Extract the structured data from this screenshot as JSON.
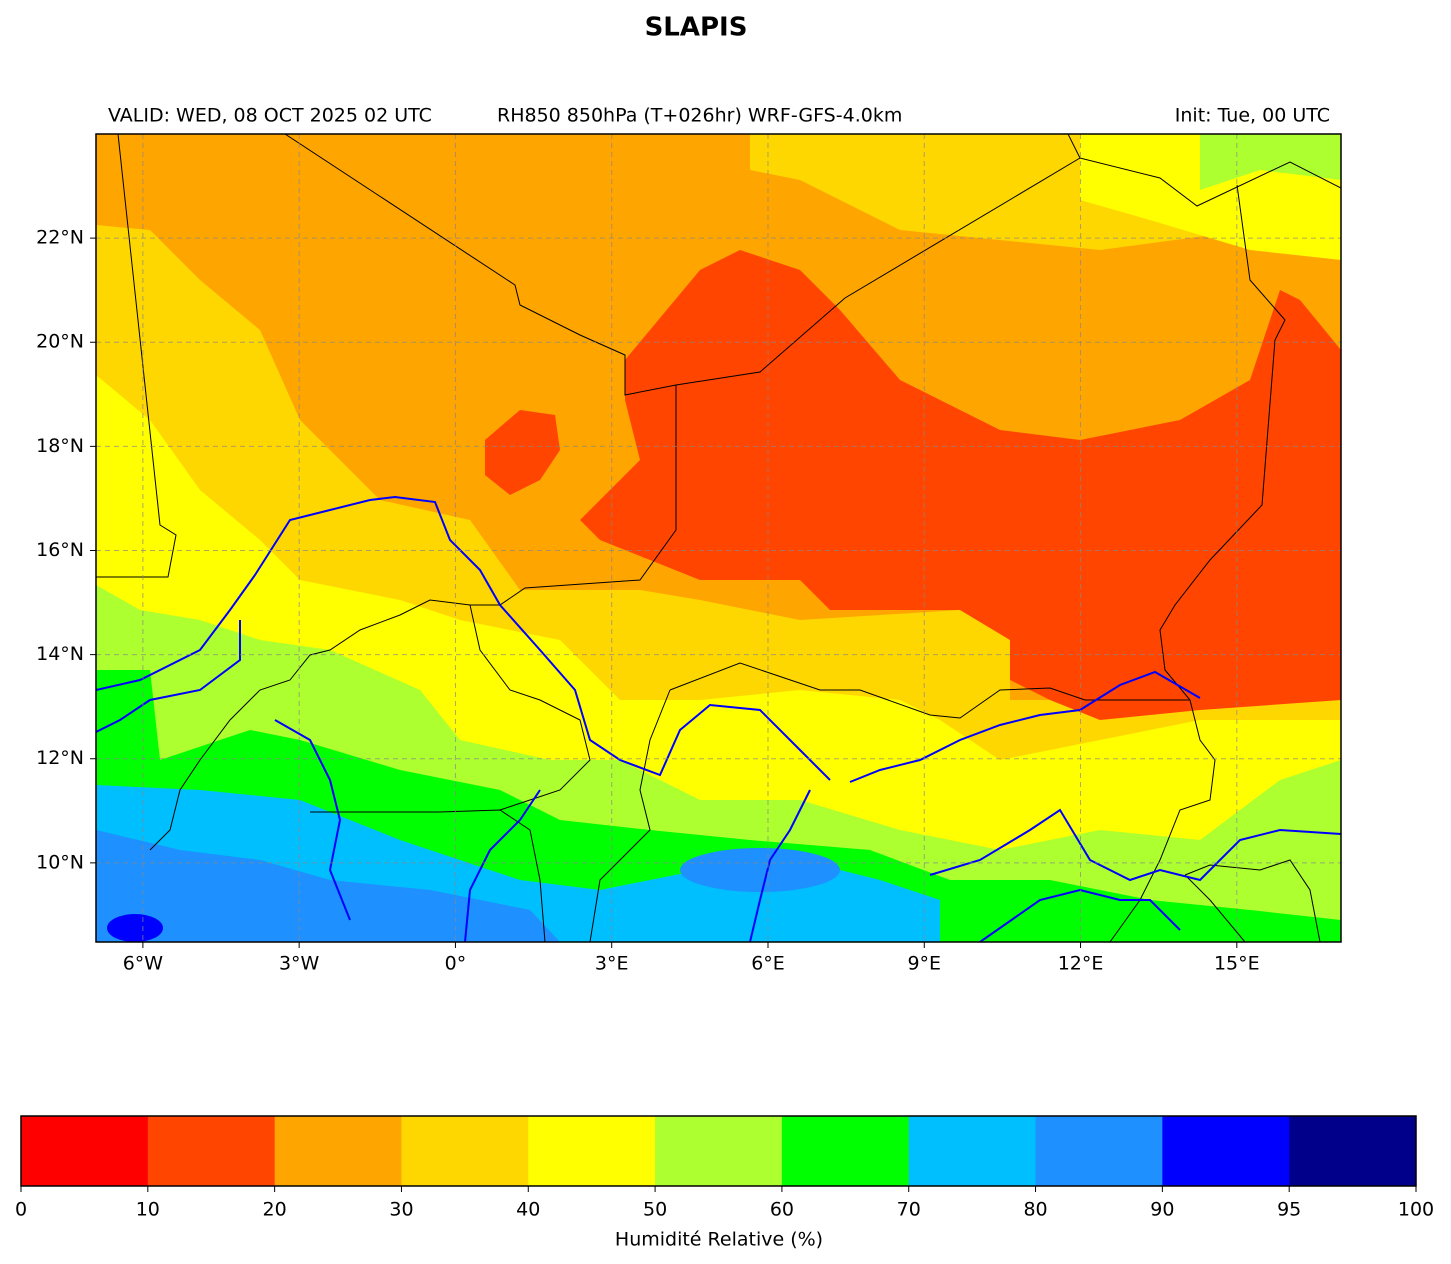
{
  "title": "SLAPIS",
  "header": {
    "valid": "VALID: WED, 08 OCT 2025 02 UTC",
    "product": "RH850 850hPa (T+026hr) WRF-GFS-4.0km",
    "init": "Init: Tue, 00 UTC"
  },
  "map": {
    "xlim": [
      -6.9,
      17.0
    ],
    "ylim": [
      8.48,
      24.0
    ],
    "xticks": [
      {
        "value": -6,
        "label": "6°W"
      },
      {
        "value": -3,
        "label": "3°W"
      },
      {
        "value": 0,
        "label": "0°"
      },
      {
        "value": 3,
        "label": "3°E"
      },
      {
        "value": 6,
        "label": "6°E"
      },
      {
        "value": 9,
        "label": "9°E"
      },
      {
        "value": 12,
        "label": "12°E"
      },
      {
        "value": 15,
        "label": "15°E"
      }
    ],
    "yticks": [
      {
        "value": 10,
        "label": "10°N"
      },
      {
        "value": 12,
        "label": "12°N"
      },
      {
        "value": 14,
        "label": "14°N"
      },
      {
        "value": 16,
        "label": "16°N"
      },
      {
        "value": 18,
        "label": "18°N"
      },
      {
        "value": 20,
        "label": "20°N"
      },
      {
        "value": 22,
        "label": "22°N"
      }
    ],
    "grid": true
  },
  "colorbar": {
    "label": "Humidité Relative (%)",
    "bounds": [
      0,
      10,
      20,
      30,
      40,
      50,
      60,
      70,
      80,
      90,
      95,
      100
    ],
    "colors": [
      "#ff0000",
      "#ff4500",
      "#ffa500",
      "#ffd700",
      "#ffff00",
      "#adff2f",
      "#00ff00",
      "#00bfff",
      "#1e90ff",
      "#0000ff",
      "#00008b"
    ]
  }
}
